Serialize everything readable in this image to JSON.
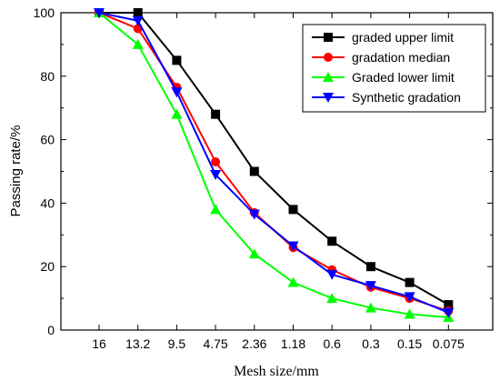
{
  "chart_data": {
    "type": "line",
    "title": "",
    "xlabel": "Mesh size/mm",
    "ylabel": "Passing rate/%",
    "categories": [
      "16",
      "13.2",
      "9.5",
      "4.75",
      "2.36",
      "1.18",
      "0.6",
      "0.3",
      "0.15",
      "0.075"
    ],
    "ylim": [
      0,
      100
    ],
    "yticks": [
      "0",
      "20",
      "40",
      "60",
      "80",
      "100"
    ],
    "grid": false,
    "legend_position": "top-right",
    "series": [
      {
        "name": "graded upper limit",
        "color": "#000000",
        "marker": "square",
        "values": [
          100,
          100,
          85,
          68,
          50,
          38,
          28,
          20,
          15,
          8
        ]
      },
      {
        "name": "gradation median",
        "color": "#ff0000",
        "marker": "circle",
        "values": [
          100,
          95,
          76.5,
          53,
          37,
          26,
          19,
          13.5,
          10,
          6
        ]
      },
      {
        "name": "Graded lower limit",
        "color": "#00ff00",
        "marker": "triangle-up",
        "values": [
          100,
          90,
          68,
          38,
          24,
          15,
          10,
          7,
          5,
          4
        ]
      },
      {
        "name": "Synthetic gradation",
        "color": "#0000ff",
        "marker": "triangle-down",
        "values": [
          100,
          97.5,
          75,
          49,
          36.5,
          26.5,
          17.5,
          14,
          10.5,
          5.5
        ]
      }
    ]
  }
}
